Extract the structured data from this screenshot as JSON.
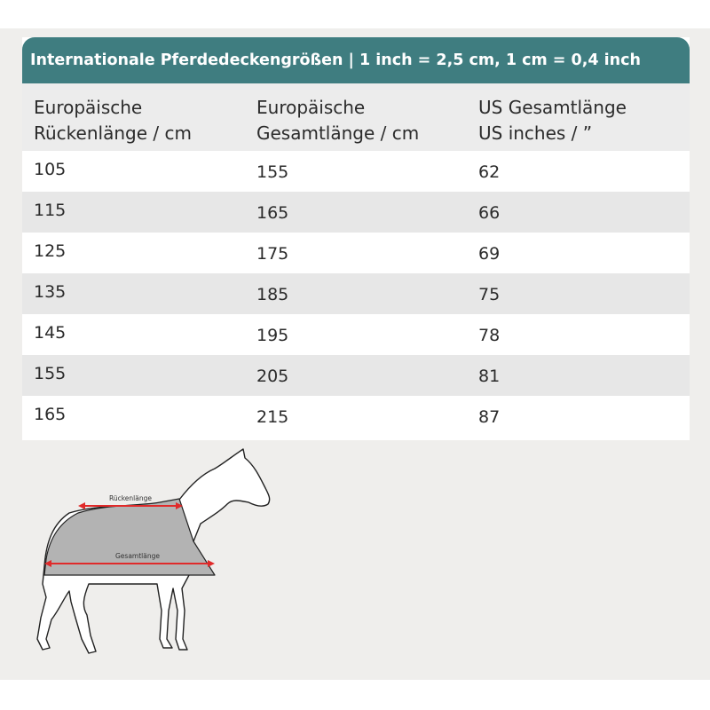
{
  "title": "Internationale Pferdedeckengrößen | 1 inch = 2,5 cm, 1 cm = 0,4 inch",
  "table": {
    "headers": [
      "Europäische\nRückenlänge / cm",
      "Europäische\nGesamtlänge / cm",
      "US Gesamtlänge\nUS inches / ”"
    ],
    "rows": [
      [
        "105",
        "155",
        "62"
      ],
      [
        "115",
        "165",
        "66"
      ],
      [
        "125",
        "175",
        "69"
      ],
      [
        "135",
        "185",
        "75"
      ],
      [
        "145",
        "195",
        "78"
      ],
      [
        "155",
        "205",
        "81"
      ],
      [
        "165",
        "215",
        "87"
      ]
    ]
  },
  "illustration": {
    "back_length_label": "Rückenlänge",
    "total_length_label": "Gesamtlänge",
    "arrow_color": "#e02a2a",
    "blanket_color": "#b3b3b3",
    "accent_color": "#3f7d80"
  }
}
